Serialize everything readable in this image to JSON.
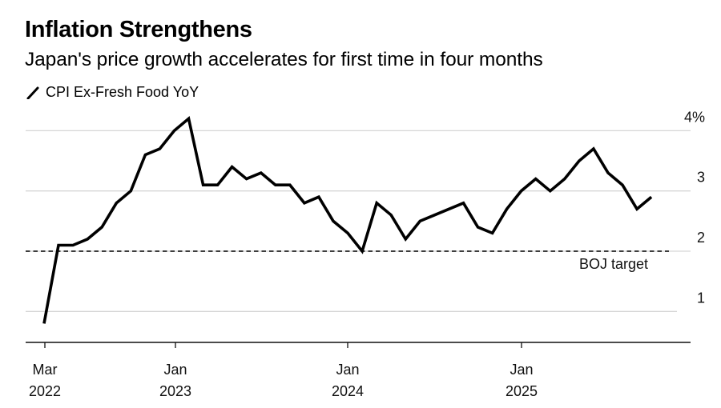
{
  "header": {
    "title": "Inflation Strengthens",
    "subtitle": "Japan's price growth accelerates for first time in four months"
  },
  "legend": {
    "items": [
      {
        "label": "CPI Ex-Fresh Food YoY",
        "icon": "line-swatch-icon",
        "color": "#000000"
      }
    ]
  },
  "chart_data": {
    "type": "line",
    "title": "Inflation Strengthens",
    "subtitle": "Japan's price growth accelerates for first time in four months",
    "xlabel": "",
    "ylabel": "",
    "y_unit": "%",
    "ylim": [
      0.5,
      4.5
    ],
    "y_ticks": [
      {
        "value": 4,
        "label": "4%"
      },
      {
        "value": 3,
        "label": "3"
      },
      {
        "value": 2,
        "label": "2"
      },
      {
        "value": 1,
        "label": "1"
      }
    ],
    "x_ticks": [
      {
        "month_index": -1,
        "line1": "Mar",
        "line2": "2022"
      },
      {
        "month_index": 9,
        "line1": "Jan",
        "line2": "2023"
      },
      {
        "month_index": 21,
        "line1": "Jan",
        "line2": "2024"
      },
      {
        "month_index": 33,
        "line1": "Jan",
        "line2": "2025"
      }
    ],
    "grid": true,
    "legend_position": "top-left",
    "reference_line": {
      "value": 2,
      "label": "BOJ target",
      "style": "dashed"
    },
    "series": [
      {
        "name": "CPI Ex-Fresh Food YoY",
        "color": "#000000",
        "x": [
          "2022-03",
          "2022-04",
          "2022-05",
          "2022-06",
          "2022-07",
          "2022-08",
          "2022-09",
          "2022-10",
          "2022-11",
          "2022-12",
          "2023-01",
          "2023-02",
          "2023-03",
          "2023-04",
          "2023-05",
          "2023-06",
          "2023-07",
          "2023-08",
          "2023-09",
          "2023-10",
          "2023-11",
          "2023-12",
          "2024-01",
          "2024-02",
          "2024-03",
          "2024-04",
          "2024-05",
          "2024-06",
          "2024-07",
          "2024-08",
          "2024-09",
          "2024-10",
          "2024-11",
          "2024-12",
          "2025-01",
          "2025-02",
          "2025-03",
          "2025-04",
          "2025-05",
          "2025-06",
          "2025-07",
          "2025-08",
          "2025-09"
        ],
        "values": [
          0.8,
          2.1,
          2.1,
          2.2,
          2.4,
          2.8,
          3.0,
          3.6,
          3.7,
          4.0,
          4.2,
          3.1,
          3.1,
          3.4,
          3.2,
          3.3,
          3.1,
          3.1,
          2.8,
          2.9,
          2.5,
          2.3,
          2.0,
          2.8,
          2.6,
          2.2,
          2.5,
          2.6,
          2.7,
          2.8,
          2.4,
          2.3,
          2.7,
          3.0,
          3.2,
          3.0,
          3.2,
          3.5,
          3.7,
          3.3,
          3.1,
          2.7,
          2.9
        ]
      }
    ]
  }
}
